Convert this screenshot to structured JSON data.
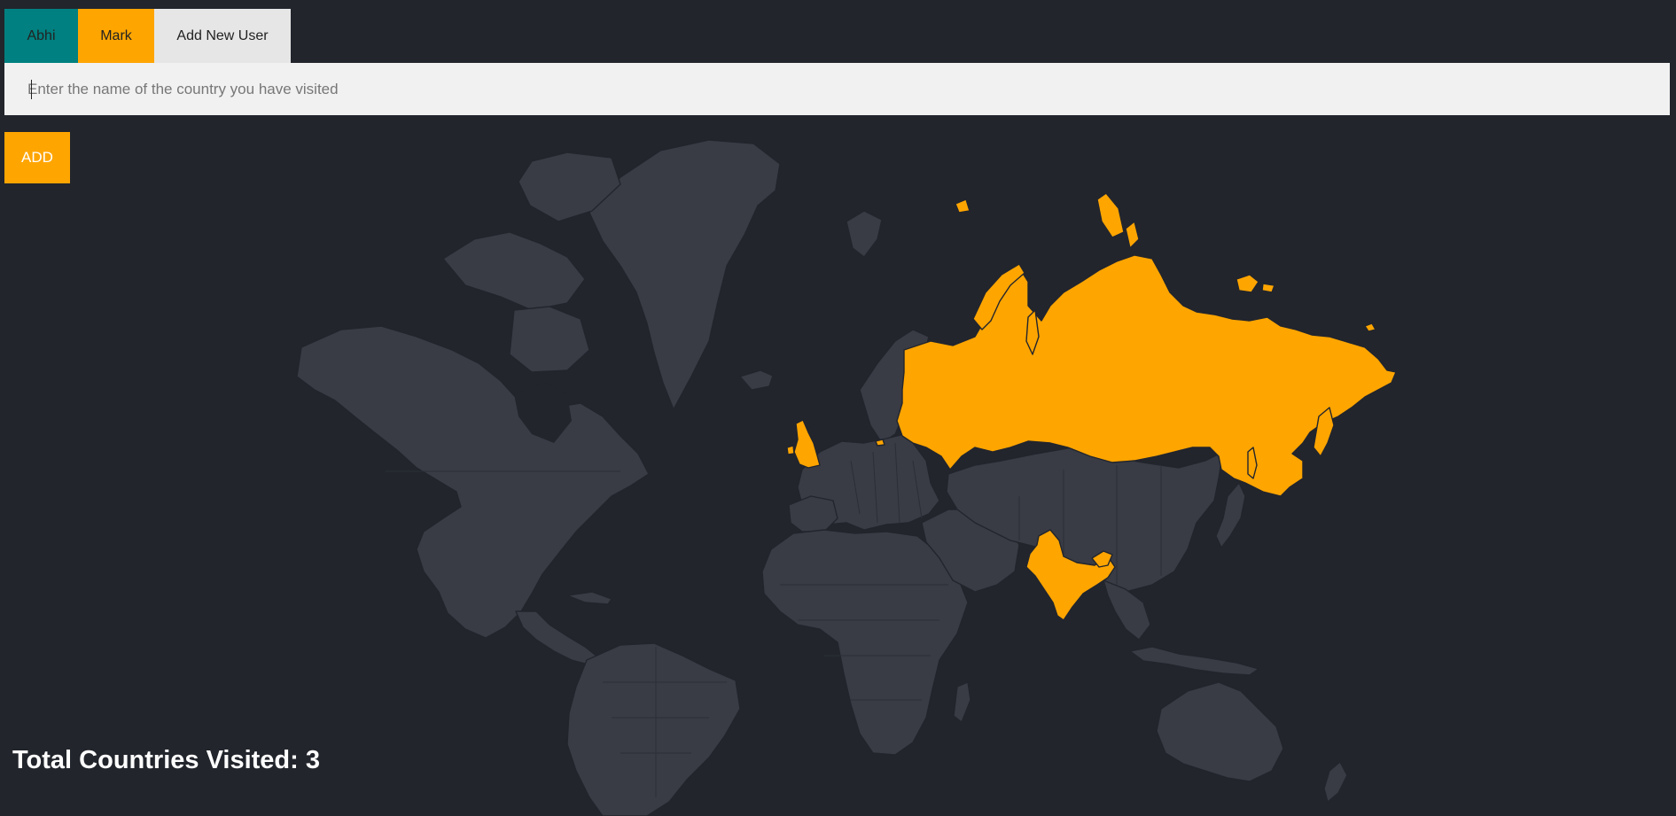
{
  "tabs": [
    {
      "label": "Abhi",
      "color": "#008080"
    },
    {
      "label": "Mark",
      "color": "#ffa500"
    },
    {
      "label": "Add New User",
      "color": "#e6e6e6"
    }
  ],
  "form": {
    "placeholder": "Enter the name of the country you have visited",
    "add_label": "ADD",
    "add_color": "#ffa500"
  },
  "map": {
    "land_color": "#393c45",
    "visited_color": "#ffa500",
    "background": "#22252c",
    "visited_countries": [
      "Russia",
      "India",
      "United Kingdom"
    ]
  },
  "total_label": "Total Countries Visited: 3"
}
